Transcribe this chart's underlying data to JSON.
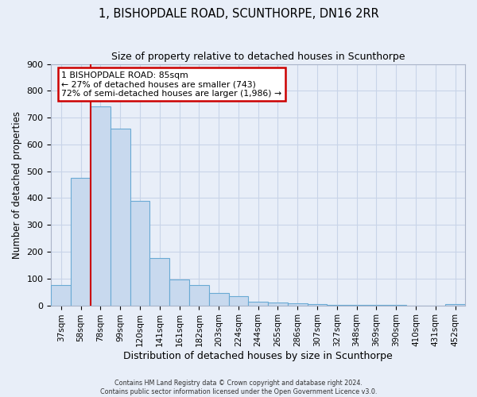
{
  "title": "1, BISHOPDALE ROAD, SCUNTHORPE, DN16 2RR",
  "subtitle": "Size of property relative to detached houses in Scunthorpe",
  "xlabel": "Distribution of detached houses by size in Scunthorpe",
  "ylabel": "Number of detached properties",
  "bar_labels": [
    "37sqm",
    "58sqm",
    "78sqm",
    "99sqm",
    "120sqm",
    "141sqm",
    "161sqm",
    "182sqm",
    "203sqm",
    "224sqm",
    "244sqm",
    "265sqm",
    "286sqm",
    "307sqm",
    "327sqm",
    "348sqm",
    "369sqm",
    "390sqm",
    "410sqm",
    "431sqm",
    "452sqm"
  ],
  "bar_values": [
    75,
    475,
    743,
    660,
    390,
    175,
    97,
    75,
    47,
    33,
    13,
    10,
    7,
    4,
    3,
    2,
    1,
    1,
    0,
    0,
    5
  ],
  "bar_color": "#c8d9ee",
  "bar_edge_color": "#6aaad4",
  "vline_color": "#cc0000",
  "vline_x_index": 2,
  "ylim": [
    0,
    900
  ],
  "yticks": [
    0,
    100,
    200,
    300,
    400,
    500,
    600,
    700,
    800,
    900
  ],
  "annotation_title": "1 BISHOPDALE ROAD: 85sqm",
  "annotation_line1": "← 27% of detached houses are smaller (743)",
  "annotation_line2": "72% of semi-detached houses are larger (1,986) →",
  "annotation_box_color": "#ffffff",
  "annotation_box_edge": "#cc0000",
  "grid_color": "#c8d4e8",
  "bg_color": "#e8eef8",
  "footer1": "Contains HM Land Registry data © Crown copyright and database right 2024.",
  "footer2": "Contains public sector information licensed under the Open Government Licence v3.0."
}
